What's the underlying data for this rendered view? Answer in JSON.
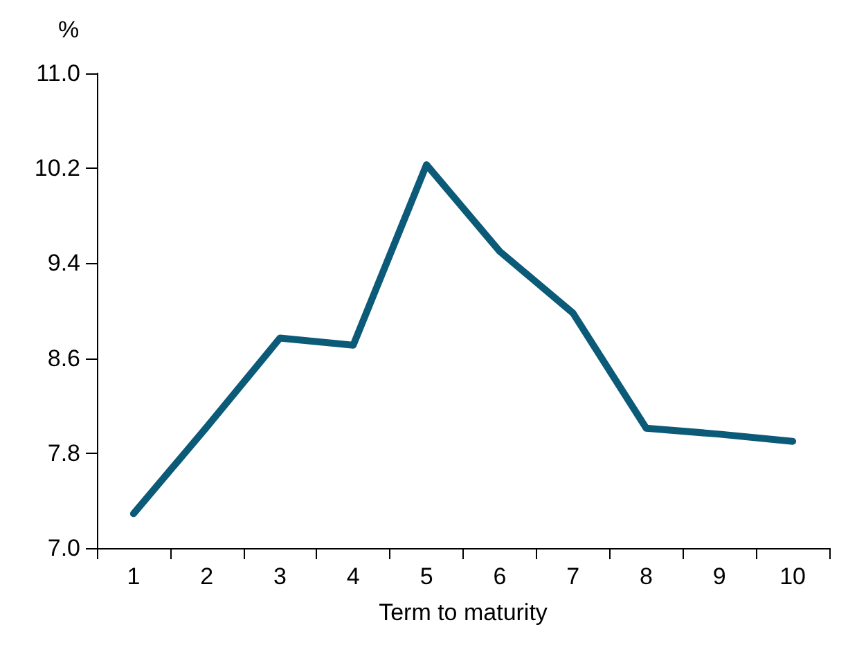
{
  "chart_data": {
    "type": "line",
    "xlabel": "Term to maturity",
    "ylabel": "%",
    "categories": [
      "1",
      "2",
      "3",
      "4",
      "5",
      "6",
      "7",
      "8",
      "9",
      "10"
    ],
    "series": [
      {
        "color": "#0b5a78",
        "values": [
          7.29,
          8.02,
          8.77,
          8.71,
          10.23,
          9.5,
          8.98,
          8.01,
          7.96,
          7.9
        ]
      }
    ],
    "ylim": [
      7.0,
      11.0
    ],
    "yticks": [
      {
        "value": 7.0,
        "label": "7.0"
      },
      {
        "value": 7.8,
        "label": "7.8"
      },
      {
        "value": 8.6,
        "label": "8.6"
      },
      {
        "value": 9.4,
        "label": "9.4"
      },
      {
        "value": 10.2,
        "label": "10.2"
      },
      {
        "value": 11.0,
        "label": "11.0"
      }
    ],
    "grid": false,
    "marker": "none",
    "line_style": "solid"
  }
}
